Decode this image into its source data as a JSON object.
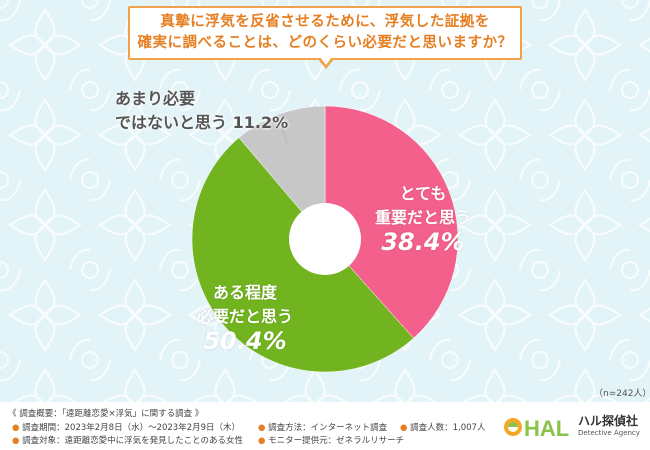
{
  "question": {
    "line1": "真摯に浮気を反省させるために、浮気した証拠を",
    "line2": "確実に調べることは、どのくらい必要だと思いますか？"
  },
  "chart_data": {
    "type": "pie",
    "slices": [
      {
        "name_line1": "とても",
        "name_line2": "重要だと思う",
        "value": 38.4,
        "value_label": "38.4%",
        "color": "#f3608c"
      },
      {
        "name_line1": "ある程度",
        "name_line2": "必要だと思う",
        "value": 50.4,
        "value_label": "50.4%",
        "color": "#72b41f"
      },
      {
        "name_line1": "あまり必要",
        "name_line2": "ではないと思う",
        "value": 11.2,
        "value_label": "11.2%",
        "color": "#c7c7c7"
      }
    ]
  },
  "n_label": "（n=242人）",
  "footer": {
    "overview": "《 調査概要：「遠距離恋愛×浮気」に関する調査 》",
    "period": "調査期間：2023年2月8日（水）～2023年2月9日（木）",
    "target": "調査対象：遠距離恋愛中に浮気を発見したことのある女性",
    "method": "調査方法：インターネット調査",
    "provider": "モニター提供元：ゼネラルリサーチ",
    "count": "調査人数：1,007人",
    "bullet": "●"
  },
  "logo": {
    "mark": "HAL",
    "name": "ハル探偵社",
    "sub": "Detective Agency"
  }
}
